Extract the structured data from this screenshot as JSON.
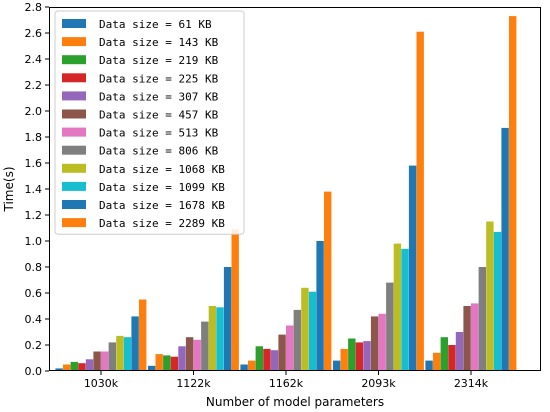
{
  "chart_data": {
    "type": "bar",
    "title": "",
    "xlabel": "Number of model parameters",
    "ylabel": "Time(s)",
    "ylim": [
      0,
      2.8
    ],
    "yticks": [
      "0.0",
      "0.2",
      "0.4",
      "0.6",
      "0.8",
      "1.0",
      "1.2",
      "1.4",
      "1.6",
      "1.8",
      "2.0",
      "2.2",
      "2.4",
      "2.6",
      "2.8"
    ],
    "grid": false,
    "legend_position": "top-left",
    "categories": [
      "1030k",
      "1122k",
      "1162k",
      "2093k",
      "2314k"
    ],
    "series": [
      {
        "name": "Data size = 61 KB",
        "color": "#1f77b4",
        "values": [
          0.02,
          0.04,
          0.05,
          0.08,
          0.08
        ]
      },
      {
        "name": "Data size = 143 KB",
        "color": "#ff7f0e",
        "values": [
          0.05,
          0.13,
          0.08,
          0.17,
          0.14
        ]
      },
      {
        "name": "Data size = 219 KB",
        "color": "#2ca02c",
        "values": [
          0.07,
          0.12,
          0.19,
          0.25,
          0.26
        ]
      },
      {
        "name": "Data size = 225 KB",
        "color": "#d62728",
        "values": [
          0.06,
          0.11,
          0.17,
          0.22,
          0.2
        ]
      },
      {
        "name": "Data size = 307 KB",
        "color": "#9467bd",
        "values": [
          0.09,
          0.19,
          0.16,
          0.23,
          0.3
        ]
      },
      {
        "name": "Data size = 457 KB",
        "color": "#8c564b",
        "values": [
          0.15,
          0.26,
          0.28,
          0.42,
          0.5
        ]
      },
      {
        "name": "Data size = 513 KB",
        "color": "#e377c2",
        "values": [
          0.15,
          0.24,
          0.35,
          0.44,
          0.52
        ]
      },
      {
        "name": "Data size = 806 KB",
        "color": "#7f7f7f",
        "values": [
          0.22,
          0.38,
          0.47,
          0.68,
          0.8
        ]
      },
      {
        "name": "Data size = 1068 KB",
        "color": "#bcbd22",
        "values": [
          0.27,
          0.5,
          0.64,
          0.98,
          1.15
        ]
      },
      {
        "name": "Data size = 1099 KB",
        "color": "#17becf",
        "values": [
          0.26,
          0.49,
          0.61,
          0.94,
          1.07
        ]
      },
      {
        "name": "Data size = 1678 KB",
        "color": "#1f77b4",
        "values": [
          0.42,
          0.8,
          1.0,
          1.58,
          1.87
        ]
      },
      {
        "name": "Data size = 2289 KB",
        "color": "#ff7f0e",
        "values": [
          0.55,
          1.09,
          1.38,
          2.61,
          2.73
        ]
      }
    ]
  }
}
